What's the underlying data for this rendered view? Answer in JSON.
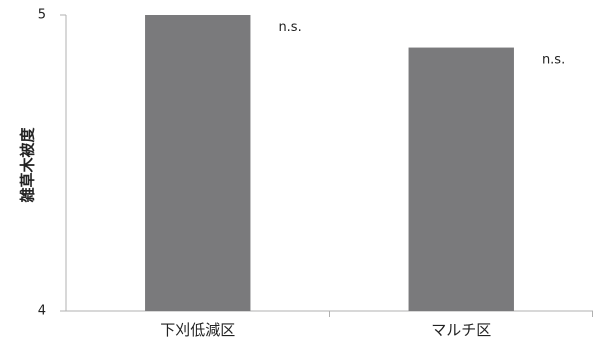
{
  "chart_data": {
    "type": "bar",
    "title": "",
    "xlabel": "",
    "ylabel": "雑草木被度",
    "ylim": [
      4,
      5
    ],
    "yticks": [
      4,
      5
    ],
    "grid": false,
    "categories": [
      "下刈低減区",
      "マルチ区"
    ],
    "values": [
      5.0,
      4.89
    ],
    "annotations": [
      "n.s.",
      "n.s."
    ],
    "bar_color": "#7a7a7c",
    "axis_color": "#b0b0b0"
  }
}
